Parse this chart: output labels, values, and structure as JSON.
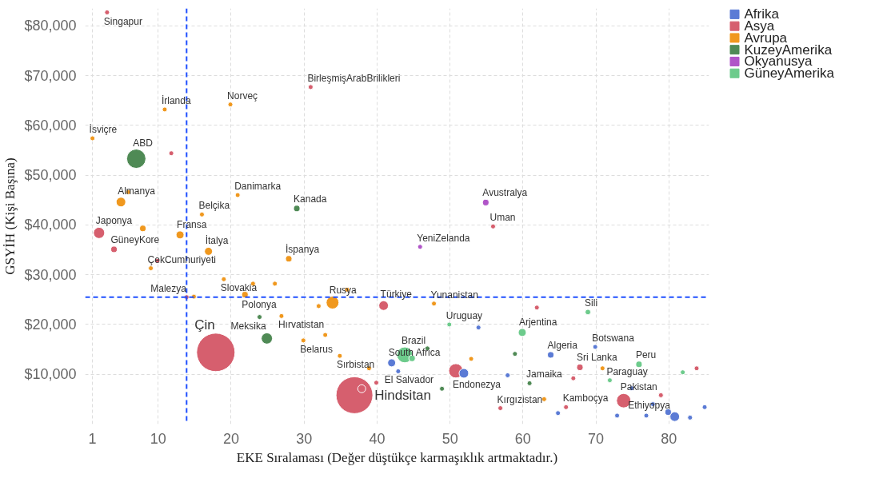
{
  "chart_data": {
    "type": "bubble",
    "xlabel": "EKE Sıralaması (Değer düştükçe karmaşıklık artmaktadır.)",
    "ylabel": "GSYİH (Kişi Başına)",
    "xlim": [
      0,
      85.5
    ],
    "ylim": [
      0,
      83500
    ],
    "xticks": [
      1,
      10,
      20,
      30,
      40,
      50,
      60,
      70,
      80
    ],
    "yticks": [
      {
        "value": 10000,
        "label": "$10,000"
      },
      {
        "value": 20000,
        "label": "$20,000"
      },
      {
        "value": 30000,
        "label": "$30,000"
      },
      {
        "value": 40000,
        "label": "$40,000"
      },
      {
        "value": 50000,
        "label": "$50,000"
      },
      {
        "value": 60000,
        "label": "$60,000"
      },
      {
        "value": 70000,
        "label": "$70,000"
      },
      {
        "value": 80000,
        "label": "$80,000"
      }
    ],
    "grid": true,
    "legend": "top right",
    "marker": "circle",
    "series": [
      {
        "name": "Afrika",
        "color": "#5b7bd5",
        "x": [
          42.0,
          42.9,
          51.9,
          53.9,
          57.9,
          63.8,
          69.9,
          64.8,
          72.9,
          74.9,
          76.9,
          77.8,
          79.9,
          80.8,
          82.9,
          84.9
        ],
        "values": [
          12300,
          10600,
          10200,
          19400,
          9800,
          13900,
          15500,
          2200,
          1700,
          7200,
          1700,
          4000,
          2400,
          1500,
          1300,
          3400
        ],
        "sizes": [
          0.043,
          0.016,
          0.0625,
          0.016,
          0.016,
          0.028,
          0.016,
          0.016,
          0.016,
          0.016,
          0.016,
          0.016,
          0.028,
          0.0625,
          0.016,
          0.016
        ]
      },
      {
        "name": "Asya",
        "color": "#d65f6e",
        "x": [
          3.0,
          30.9,
          11.8,
          1.9,
          3.95,
          9.9,
          13.9,
          17.9,
          40.9,
          55.9,
          61.9,
          36.9,
          37.9,
          39.9,
          50.8,
          56.9,
          67.8,
          66.9,
          83.8,
          78.9,
          73.8,
          65.9
        ],
        "values": [
          82700,
          67700,
          54400,
          38400,
          35100,
          32800,
          25500,
          14400,
          23800,
          39700,
          23400,
          5800,
          7100,
          8300,
          10700,
          3200,
          11400,
          9200,
          11200,
          5800,
          4700,
          3400
        ],
        "sizes": [
          0.016,
          0.016,
          0.016,
          0.085,
          0.028,
          0.016,
          0.016,
          1,
          0.0625,
          0.016,
          0.016,
          0.92,
          0.043,
          0.016,
          0.14,
          0.016,
          0.028,
          0.016,
          0.016,
          0.016,
          0.14,
          0.016
        ]
      },
      {
        "name": "Avrupa",
        "color": "#f0981e",
        "x": [
          10.9,
          19.9,
          1.0,
          4.9,
          5.9,
          20.9,
          16.0,
          7.9,
          13.0,
          16.9,
          27.9,
          9.0,
          19.0,
          23.0,
          26.0,
          21.9,
          14.9,
          26.9,
          32.0,
          29.9,
          32.9,
          33.9,
          35.9,
          47.8,
          34.9,
          38.9,
          52.9,
          70.9,
          62.9
        ],
        "values": [
          63200,
          64200,
          57400,
          44600,
          46600,
          46000,
          42100,
          39300,
          38000,
          34700,
          33200,
          31300,
          29100,
          28200,
          28200,
          26000,
          25600,
          21700,
          23700,
          16800,
          17900,
          24400,
          27000,
          24200,
          13700,
          11200,
          13100,
          11200,
          5000
        ],
        "sizes": [
          0.016,
          0.016,
          0.016,
          0.0625,
          0.016,
          0.016,
          0.016,
          0.028,
          0.043,
          0.043,
          0.028,
          0.016,
          0.016,
          0.016,
          0.016,
          0.028,
          0.016,
          0.016,
          0.016,
          0.016,
          0.016,
          0.11,
          0.016,
          0.016,
          0.016,
          0.016,
          0.016,
          0.016,
          0.016
        ]
      },
      {
        "name": "KuzeyAmerika",
        "color": "#4f8a55",
        "x": [
          7.0,
          29.0,
          23.9,
          24.9,
          46.9,
          48.9,
          58.9,
          60.9
        ],
        "values": [
          53300,
          43300,
          21500,
          17200,
          15200,
          7100,
          14100,
          8200
        ],
        "sizes": [
          0.25,
          0.028,
          0.016,
          0.085,
          0.016,
          0.016,
          0.016,
          0.016
        ]
      },
      {
        "name": "Okyanusya",
        "color": "#b055c8",
        "x": [
          54.9,
          45.9
        ],
        "values": [
          44500,
          35600
        ],
        "sizes": [
          0.028,
          0.016
        ]
      },
      {
        "name": "GüneyAmerika",
        "color": "#6dcb8c",
        "x": [
          43.8,
          44.8,
          49.9,
          59.9,
          68.9,
          75.9,
          71.9,
          81.9
        ],
        "values": [
          13900,
          13200,
          20000,
          18400,
          22500,
          12000,
          8800,
          10400
        ],
        "sizes": [
          0.17,
          0.028,
          0.016,
          0.043,
          0.021,
          0.028,
          0.016,
          0.016
        ]
      }
    ],
    "ref_lines": [
      {
        "axis": "y",
        "value": 25500,
        "color": "#1f4fff",
        "line_style": "dashed"
      },
      {
        "axis": "x",
        "value": 13.9,
        "color": "#1f4fff",
        "line_style": "dashed"
      }
    ],
    "annotations": [
      {
        "text": "Singapur",
        "x": 3.0,
        "y": 82700
      },
      {
        "text": "BirleşmişArabBrilikleri",
        "x": 30.9,
        "y": 67700
      },
      {
        "text": "İrlanda",
        "x": 10.9,
        "y": 63200
      },
      {
        "text": "Norveç",
        "x": 19.9,
        "y": 64200
      },
      {
        "text": "İsviçre",
        "x": 1.0,
        "y": 57400
      },
      {
        "text": "ABD",
        "x": 7.0,
        "y": 53300
      },
      {
        "text": "Almanya",
        "x": 4.9,
        "y": 44600
      },
      {
        "text": "Danimarka",
        "x": 20.9,
        "y": 46000
      },
      {
        "text": "Kanada",
        "x": 29.0,
        "y": 43300
      },
      {
        "text": "Belçika",
        "x": 16.0,
        "y": 42100
      },
      {
        "text": "Japonya",
        "x": 1.9,
        "y": 38400
      },
      {
        "text": "Fransa",
        "x": 13.0,
        "y": 38000
      },
      {
        "text": "GüneyKore",
        "x": 3.95,
        "y": 35100
      },
      {
        "text": "İtalya",
        "x": 16.9,
        "y": 34700
      },
      {
        "text": "İspanya",
        "x": 27.9,
        "y": 33200
      },
      {
        "text": "ÇekCumhuriyeti",
        "x": 9.0,
        "y": 31300
      },
      {
        "text": "Slovakia",
        "x": 19.0,
        "y": 29100
      },
      {
        "text": "Polonya",
        "x": 21.9,
        "y": 26000
      },
      {
        "text": "Malezya",
        "x": 13.9,
        "y": 25500
      },
      {
        "text": "Hırvatistan",
        "x": 26.9,
        "y": 21700
      },
      {
        "text": "Meksika",
        "x": 24.9,
        "y": 17200
      },
      {
        "text": "Belarus",
        "x": 29.9,
        "y": 16800
      },
      {
        "text": "Çin",
        "x": 17.9,
        "y": 14400
      },
      {
        "text": "Rusya",
        "x": 33.9,
        "y": 24400
      },
      {
        "text": "Türkiye",
        "x": 40.9,
        "y": 23800
      },
      {
        "text": "Yunanistan",
        "x": 47.8,
        "y": 24200
      },
      {
        "text": "YeniZelanda",
        "x": 45.9,
        "y": 35600
      },
      {
        "text": "Uman",
        "x": 55.9,
        "y": 39700
      },
      {
        "text": "Avustralya",
        "x": 54.9,
        "y": 44500
      },
      {
        "text": "Uruguay",
        "x": 49.9,
        "y": 20000
      },
      {
        "text": "Arjentina",
        "x": 59.9,
        "y": 18400
      },
      {
        "text": "Sırbistan",
        "x": 34.9,
        "y": 13700
      },
      {
        "text": "Brazil",
        "x": 43.8,
        "y": 13900
      },
      {
        "text": "South Africa",
        "x": 42.0,
        "y": 12300
      },
      {
        "text": "Hindsitan",
        "x": 36.9,
        "y": 5800
      },
      {
        "text": "Endonezya",
        "x": 50.8,
        "y": 10700
      },
      {
        "text": "El Salvador",
        "x": 48.9,
        "y": 7100
      },
      {
        "text": "Kırgızistan",
        "x": 56.9,
        "y": 3200
      },
      {
        "text": "Sili",
        "x": 68.9,
        "y": 22500
      },
      {
        "text": "Algeria",
        "x": 63.8,
        "y": 13900
      },
      {
        "text": "Botswana",
        "x": 69.9,
        "y": 15500
      },
      {
        "text": "Sri Lanka",
        "x": 67.8,
        "y": 11400
      },
      {
        "text": "Peru",
        "x": 75.9,
        "y": 12000
      },
      {
        "text": "Paraguay",
        "x": 71.9,
        "y": 8800
      },
      {
        "text": "Jamaika",
        "x": 60.9,
        "y": 8200
      },
      {
        "text": "Pakistan",
        "x": 73.8,
        "y": 4700
      },
      {
        "text": "Kamboçya",
        "x": 65.9,
        "y": 3400
      },
      {
        "text": "Ethiyopya",
        "x": 80.8,
        "y": 1500
      }
    ]
  }
}
